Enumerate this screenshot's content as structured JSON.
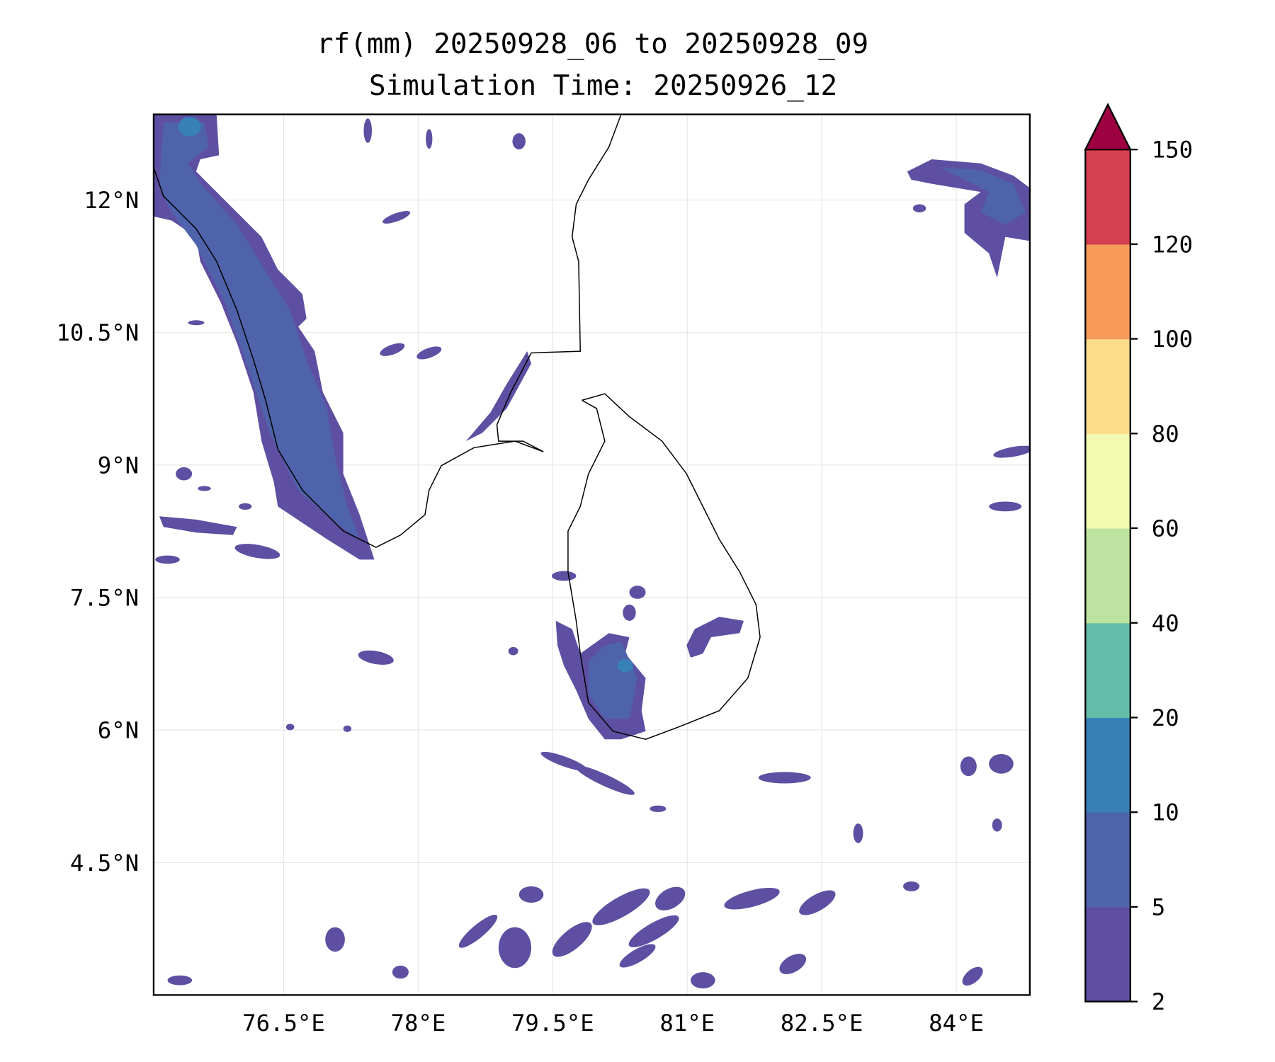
{
  "chart_data": {
    "type": "heatmap",
    "subtype": "filled-contour-map",
    "title": "rf(mm) 20250928_06 to 20250928_09",
    "subtitle": "Simulation Time: 20250926_12",
    "xlabel": "",
    "ylabel": "",
    "xlim": [
      75.05,
      84.82
    ],
    "ylim": [
      3.0,
      12.97
    ],
    "grid": true,
    "x_ticks": [
      {
        "value": 76.5,
        "label": "76.5°E"
      },
      {
        "value": 78,
        "label": "78°E"
      },
      {
        "value": 79.5,
        "label": "79.5°E"
      },
      {
        "value": 81,
        "label": "81°E"
      },
      {
        "value": 82.5,
        "label": "82.5°E"
      },
      {
        "value": 84,
        "label": "84°E"
      }
    ],
    "y_ticks": [
      {
        "value": 12,
        "label": "12°N"
      },
      {
        "value": 10.5,
        "label": "10.5°N"
      },
      {
        "value": 9,
        "label": "9°N"
      },
      {
        "value": 7.5,
        "label": "7.5°N"
      },
      {
        "value": 6,
        "label": "6°N"
      },
      {
        "value": 4.5,
        "label": "4.5°N"
      }
    ],
    "colorbar": {
      "levels": [
        "2",
        "5",
        "10",
        "20",
        "40",
        "60",
        "80",
        "100",
        "120",
        "150"
      ],
      "colors": [
        "#5e4fa2",
        "#4e63ab",
        "#3780b8",
        "#62bda8",
        "#bde3a0",
        "#f2f9b0",
        "#fbdc8b",
        "#f89a5a",
        "#d63f4f"
      ],
      "extend_color": "#9e0142",
      "extend": "max",
      "placement": "right"
    },
    "coastline_color": "#000000"
  }
}
